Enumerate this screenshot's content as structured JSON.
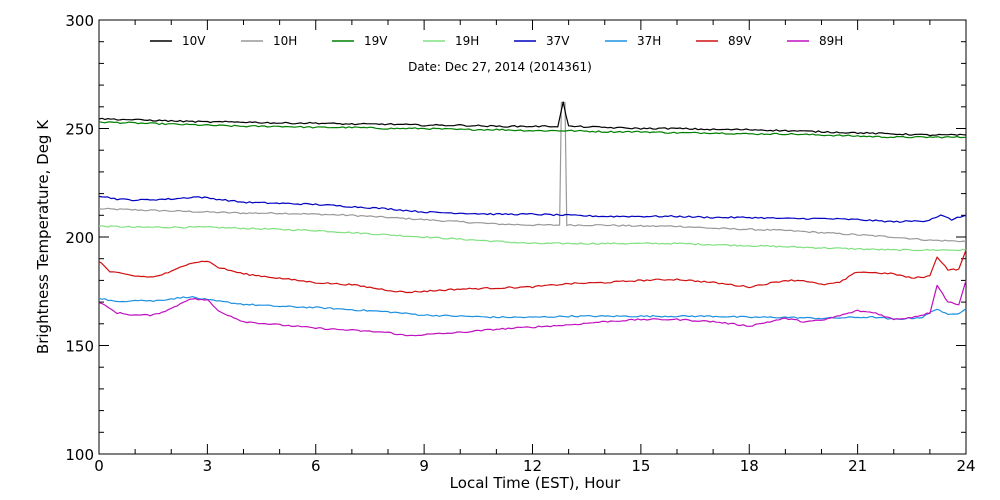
{
  "chart_data": {
    "type": "line",
    "title": "",
    "annotation": "Date: Dec 27, 2014 (2014361)",
    "xlabel": "Local Time (EST), Hour",
    "ylabel": "Brightness Temperature, Deg K",
    "xlim": [
      0,
      24
    ],
    "ylim": [
      100,
      300
    ],
    "xticks": [
      0,
      3,
      6,
      9,
      12,
      15,
      18,
      21,
      24
    ],
    "yticks": [
      100,
      150,
      200,
      250,
      300
    ],
    "grid": false,
    "legend_position": "top",
    "series": [
      {
        "name": "10V",
        "color": "#000000",
        "points": [
          [
            0,
            254.5
          ],
          [
            1,
            254
          ],
          [
            2,
            253.5
          ],
          [
            3,
            253
          ],
          [
            4,
            253
          ],
          [
            5,
            252.5
          ],
          [
            6,
            252.5
          ],
          [
            7,
            252
          ],
          [
            8,
            252
          ],
          [
            9,
            251.5
          ],
          [
            10,
            251.5
          ],
          [
            11,
            251
          ],
          [
            12,
            251
          ],
          [
            12.7,
            251
          ],
          [
            12.85,
            262
          ],
          [
            13.0,
            251
          ],
          [
            14,
            250.5
          ],
          [
            15,
            250
          ],
          [
            16,
            250
          ],
          [
            17,
            249.5
          ],
          [
            18,
            249.5
          ],
          [
            19,
            249
          ],
          [
            20,
            248.5
          ],
          [
            21,
            248
          ],
          [
            22,
            247.5
          ],
          [
            23,
            247
          ],
          [
            24,
            247
          ]
        ]
      },
      {
        "name": "10H",
        "color": "#999999",
        "points": [
          [
            0,
            213
          ],
          [
            1,
            212.5
          ],
          [
            2,
            212
          ],
          [
            3,
            211.5
          ],
          [
            4,
            211
          ],
          [
            5,
            211
          ],
          [
            6,
            210.5
          ],
          [
            7,
            210
          ],
          [
            8,
            209
          ],
          [
            9,
            208
          ],
          [
            10,
            207
          ],
          [
            11,
            206
          ],
          [
            12,
            205.5
          ],
          [
            12.75,
            205.5
          ],
          [
            12.8,
            262
          ],
          [
            12.9,
            262
          ],
          [
            12.95,
            205.5
          ],
          [
            13.5,
            205.5
          ],
          [
            14,
            205.5
          ],
          [
            15,
            205
          ],
          [
            16,
            205
          ],
          [
            17,
            204
          ],
          [
            18,
            203.5
          ],
          [
            19,
            203
          ],
          [
            20,
            202
          ],
          [
            21,
            201
          ],
          [
            22,
            200
          ],
          [
            23,
            198.5
          ],
          [
            24,
            198
          ]
        ]
      },
      {
        "name": "19V",
        "color": "#008000",
        "points": [
          [
            0,
            253
          ],
          [
            1,
            252.5
          ],
          [
            2,
            252
          ],
          [
            3,
            251.5
          ],
          [
            4,
            251
          ],
          [
            5,
            251
          ],
          [
            6,
            250.5
          ],
          [
            7,
            250.5
          ],
          [
            8,
            250
          ],
          [
            9,
            250
          ],
          [
            10,
            249.5
          ],
          [
            11,
            249.5
          ],
          [
            12,
            249
          ],
          [
            13,
            249
          ],
          [
            14,
            248.5
          ],
          [
            15,
            248.5
          ],
          [
            16,
            248
          ],
          [
            17,
            248
          ],
          [
            18,
            247.5
          ],
          [
            19,
            247.5
          ],
          [
            20,
            247
          ],
          [
            21,
            246.5
          ],
          [
            22,
            246
          ],
          [
            23,
            246
          ],
          [
            24,
            246
          ]
        ]
      },
      {
        "name": "19H",
        "color": "#80e080",
        "points": [
          [
            0,
            205
          ],
          [
            1,
            204.5
          ],
          [
            2,
            204.5
          ],
          [
            3,
            204.5
          ],
          [
            4,
            204
          ],
          [
            5,
            203.5
          ],
          [
            6,
            203
          ],
          [
            7,
            202
          ],
          [
            8,
            201
          ],
          [
            9,
            200
          ],
          [
            10,
            199
          ],
          [
            11,
            198
          ],
          [
            12,
            197
          ],
          [
            13,
            197
          ],
          [
            14,
            197
          ],
          [
            15,
            197
          ],
          [
            16,
            197
          ],
          [
            17,
            196.5
          ],
          [
            18,
            196
          ],
          [
            19,
            195.5
          ],
          [
            20,
            195
          ],
          [
            21,
            194.5
          ],
          [
            22,
            194
          ],
          [
            23,
            194
          ],
          [
            24,
            194
          ]
        ]
      },
      {
        "name": "37V",
        "color": "#0000c0",
        "points": [
          [
            0,
            219
          ],
          [
            0.5,
            217.5
          ],
          [
            1,
            217
          ],
          [
            2,
            217.5
          ],
          [
            2.7,
            218.5
          ],
          [
            3,
            218
          ],
          [
            4,
            216
          ],
          [
            5,
            215.5
          ],
          [
            6,
            215
          ],
          [
            7,
            214
          ],
          [
            8,
            213
          ],
          [
            9,
            211.5
          ],
          [
            10,
            211
          ],
          [
            11,
            210.5
          ],
          [
            12,
            210.5
          ],
          [
            13,
            210
          ],
          [
            14,
            209.5
          ],
          [
            15,
            209.5
          ],
          [
            16,
            209.5
          ],
          [
            17,
            209
          ],
          [
            18,
            209
          ],
          [
            19,
            208.5
          ],
          [
            20,
            208.5
          ],
          [
            21,
            208
          ],
          [
            22,
            207
          ],
          [
            22.9,
            207.5
          ],
          [
            23.3,
            210
          ],
          [
            23.6,
            208
          ],
          [
            24,
            210
          ]
        ]
      },
      {
        "name": "37H",
        "color": "#1e90e0",
        "points": [
          [
            0,
            172
          ],
          [
            0.5,
            170
          ],
          [
            1,
            171
          ],
          [
            1.5,
            170.5
          ],
          [
            2,
            171.5
          ],
          [
            2.5,
            172.5
          ],
          [
            3,
            171
          ],
          [
            4,
            169
          ],
          [
            5,
            168
          ],
          [
            6,
            167.5
          ],
          [
            7,
            166.5
          ],
          [
            8,
            165.5
          ],
          [
            9,
            164
          ],
          [
            10,
            163.5
          ],
          [
            11,
            163
          ],
          [
            12,
            163
          ],
          [
            13,
            163.5
          ],
          [
            14,
            163.5
          ],
          [
            15,
            163.5
          ],
          [
            16,
            163.5
          ],
          [
            17,
            163.5
          ],
          [
            18,
            163
          ],
          [
            19,
            163
          ],
          [
            20,
            162.5
          ],
          [
            21,
            163
          ],
          [
            21.5,
            163
          ],
          [
            22,
            162
          ],
          [
            22.8,
            163
          ],
          [
            23.2,
            167
          ],
          [
            23.5,
            164
          ],
          [
            23.8,
            165
          ],
          [
            24,
            167
          ]
        ]
      },
      {
        "name": "89V",
        "color": "#d01010",
        "points": [
          [
            0,
            189
          ],
          [
            0.3,
            184
          ],
          [
            1,
            182
          ],
          [
            1.5,
            181.5
          ],
          [
            2,
            184
          ],
          [
            2.5,
            188
          ],
          [
            3,
            189
          ],
          [
            3.3,
            186
          ],
          [
            4,
            183
          ],
          [
            5,
            181
          ],
          [
            6,
            179
          ],
          [
            7,
            178
          ],
          [
            8,
            175.5
          ],
          [
            8.5,
            174.5
          ],
          [
            9,
            175
          ],
          [
            10,
            176
          ],
          [
            11,
            176.5
          ],
          [
            12,
            177
          ],
          [
            13,
            178.5
          ],
          [
            14,
            179
          ],
          [
            15,
            180
          ],
          [
            16,
            180.5
          ],
          [
            17,
            179
          ],
          [
            18,
            177
          ],
          [
            19,
            180
          ],
          [
            19.5,
            180
          ],
          [
            20,
            178
          ],
          [
            20.5,
            179
          ],
          [
            21,
            184
          ],
          [
            22,
            183
          ],
          [
            22.5,
            181
          ],
          [
            23,
            182
          ],
          [
            23.2,
            191
          ],
          [
            23.5,
            185
          ],
          [
            23.8,
            185
          ],
          [
            24,
            194
          ]
        ]
      },
      {
        "name": "89H",
        "color": "#c010c0",
        "points": [
          [
            0,
            170
          ],
          [
            0.5,
            165
          ],
          [
            1,
            164
          ],
          [
            1.5,
            164
          ],
          [
            2,
            167
          ],
          [
            2.5,
            171.5
          ],
          [
            3,
            171
          ],
          [
            3.3,
            166
          ],
          [
            4,
            161
          ],
          [
            5,
            159.5
          ],
          [
            6,
            158
          ],
          [
            7,
            157
          ],
          [
            8,
            156
          ],
          [
            8.5,
            154.5
          ],
          [
            9,
            155
          ],
          [
            10,
            156
          ],
          [
            11,
            157.5
          ],
          [
            12,
            158.5
          ],
          [
            13,
            159.5
          ],
          [
            14,
            161
          ],
          [
            15,
            162
          ],
          [
            16,
            162
          ],
          [
            17,
            161
          ],
          [
            18,
            159
          ],
          [
            19,
            162.5
          ],
          [
            19.5,
            161
          ],
          [
            20,
            161.5
          ],
          [
            21,
            166
          ],
          [
            21.5,
            165
          ],
          [
            22,
            162
          ],
          [
            22.5,
            163
          ],
          [
            23,
            165
          ],
          [
            23.2,
            178
          ],
          [
            23.5,
            170
          ],
          [
            23.8,
            169
          ],
          [
            24,
            180
          ]
        ]
      }
    ]
  }
}
